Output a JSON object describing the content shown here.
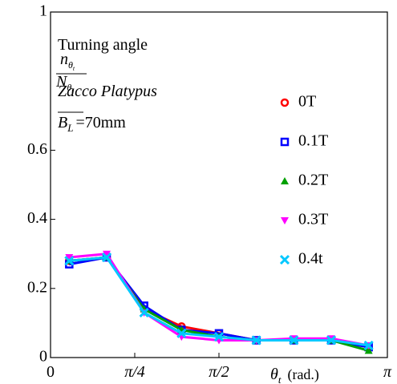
{
  "chart_data": {
    "type": "line",
    "annotations": [
      "Turning angle",
      "Zacco Platypus"
    ],
    "param": {
      "symbol": "B",
      "sub": "L",
      "text": "=70mm"
    },
    "ylabel": {
      "numerator": "n",
      "numerator_sub": "θ",
      "denominator": "N",
      "denominator_sub": "θ",
      "subsub": "t"
    },
    "xlabel": {
      "symbol": "θ",
      "sub": "t",
      "unit": "(rad.)"
    },
    "x": [
      0.1745,
      0.5236,
      0.8727,
      1.2217,
      1.5708,
      1.9199,
      2.2689,
      2.618,
      2.9671
    ],
    "series": [
      {
        "name": "0T",
        "color": "#ff0000",
        "marker": "circle",
        "values": [
          0.28,
          0.29,
          0.14,
          0.09,
          0.07,
          0.05,
          0.05,
          0.05,
          0.03
        ]
      },
      {
        "name": "0.1T",
        "color": "#0000ff",
        "marker": "square",
        "values": [
          0.27,
          0.29,
          0.15,
          0.08,
          0.07,
          0.05,
          0.05,
          0.05,
          0.03
        ]
      },
      {
        "name": "0.2T",
        "color": "#00a000",
        "marker": "triangle-up",
        "values": [
          0.28,
          0.29,
          0.14,
          0.08,
          0.06,
          0.05,
          0.05,
          0.05,
          0.02
        ]
      },
      {
        "name": "0.3T",
        "color": "#ff00ff",
        "marker": "triangle-down",
        "values": [
          0.29,
          0.3,
          0.13,
          0.06,
          0.05,
          0.05,
          0.055,
          0.055,
          0.035
        ]
      },
      {
        "name": "0.4t",
        "color": "#00c8ff",
        "marker": "x",
        "values": [
          0.28,
          0.29,
          0.13,
          0.07,
          0.06,
          0.05,
          0.05,
          0.05,
          0.035
        ]
      }
    ],
    "xlim": [
      0,
      3.1416
    ],
    "xticks": [
      0,
      {
        "value": 0.7854,
        "label": "π/4"
      },
      {
        "value": 1.5708,
        "label": "π/2"
      },
      {
        "value": 3.1416,
        "label": "π"
      }
    ],
    "ylim": [
      0,
      1
    ],
    "yticks": [
      0,
      0.2,
      0.4,
      0.6,
      1
    ]
  }
}
